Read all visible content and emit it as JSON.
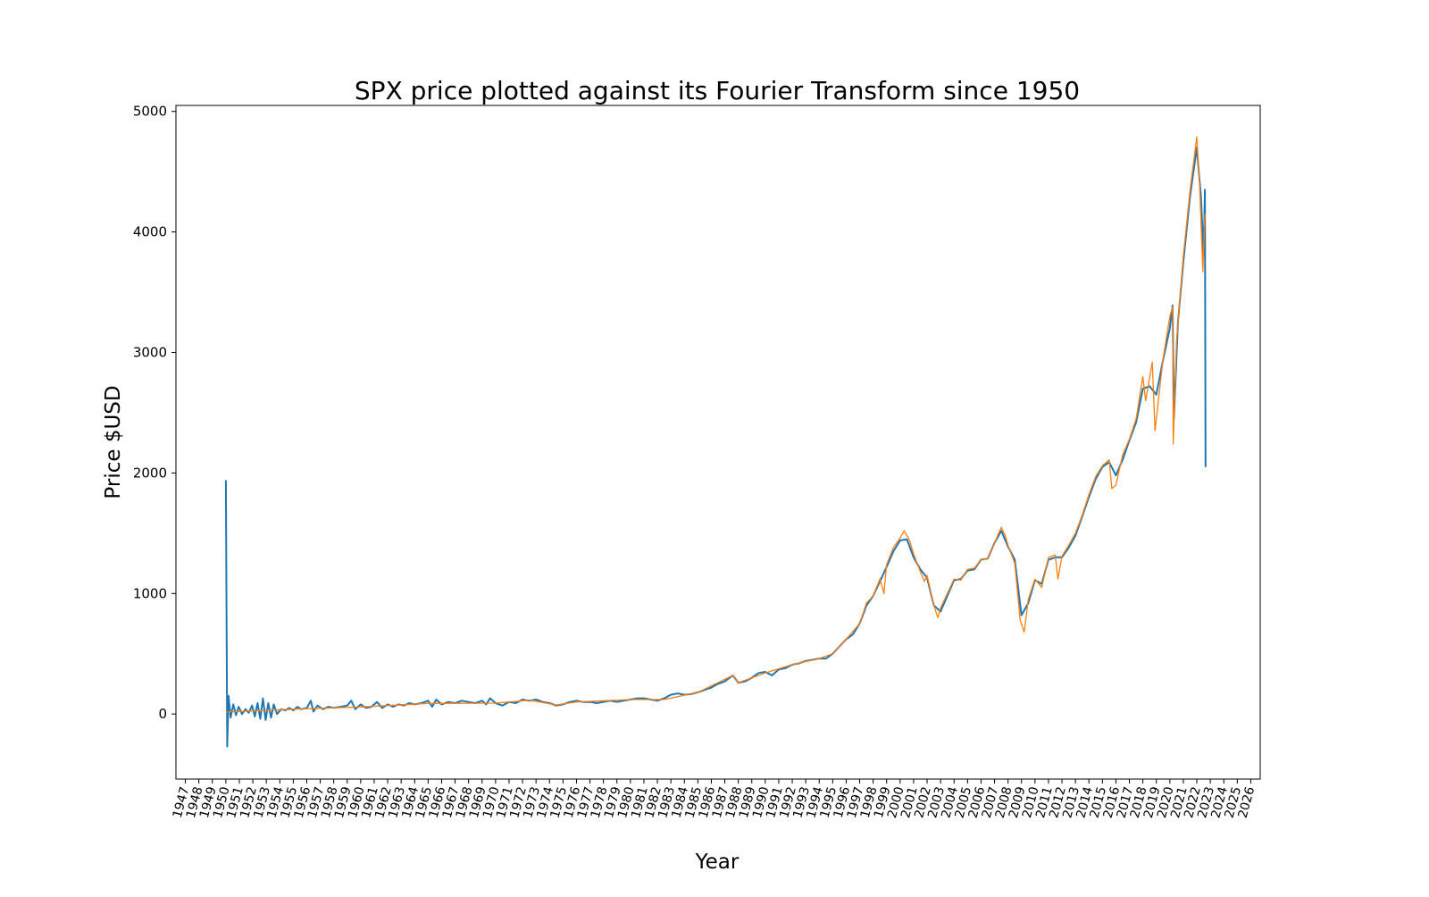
{
  "chart_data": {
    "type": "line",
    "title": "SPX price plotted against its Fourier Transform since 1950",
    "xlabel": "Year",
    "ylabel": "Price $USD",
    "xlim": [
      1946.3,
      2026.7
    ],
    "ylim": [
      -540,
      5050
    ],
    "yticks": [
      0,
      1000,
      2000,
      3000,
      4000,
      5000
    ],
    "xticks": [
      1947,
      1948,
      1949,
      1950,
      1951,
      1952,
      1953,
      1954,
      1955,
      1956,
      1957,
      1958,
      1959,
      1960,
      1961,
      1962,
      1963,
      1964,
      1965,
      1966,
      1967,
      1968,
      1969,
      1970,
      1971,
      1972,
      1973,
      1974,
      1975,
      1976,
      1977,
      1978,
      1979,
      1980,
      1981,
      1982,
      1983,
      1984,
      1985,
      1986,
      1987,
      1988,
      1989,
      1990,
      1991,
      1992,
      1993,
      1994,
      1995,
      1996,
      1997,
      1998,
      1999,
      2000,
      2001,
      2002,
      2003,
      2004,
      2005,
      2006,
      2007,
      2008,
      2009,
      2010,
      2011,
      2012,
      2013,
      2014,
      2015,
      2016,
      2017,
      2018,
      2019,
      2020,
      2021,
      2022,
      2023,
      2024,
      2025,
      2026
    ],
    "grid": false,
    "legend": false,
    "colors": {
      "fourier": "#1f77b4",
      "price": "#ff7f0e"
    },
    "series": [
      {
        "key": "fourier",
        "color": "#1f77b4",
        "points": [
          [
            1950.0,
            1940
          ],
          [
            1950.1,
            -270
          ],
          [
            1950.2,
            150
          ],
          [
            1950.35,
            -30
          ],
          [
            1950.55,
            80
          ],
          [
            1950.75,
            -10
          ],
          [
            1950.95,
            60
          ],
          [
            1951.2,
            0
          ],
          [
            1951.45,
            40
          ],
          [
            1951.7,
            10
          ],
          [
            1951.95,
            70
          ],
          [
            1952.15,
            -20
          ],
          [
            1952.35,
            90
          ],
          [
            1952.55,
            -40
          ],
          [
            1952.75,
            130
          ],
          [
            1952.95,
            -50
          ],
          [
            1953.15,
            90
          ],
          [
            1953.35,
            -30
          ],
          [
            1953.55,
            80
          ],
          [
            1953.8,
            0
          ],
          [
            1954.1,
            40
          ],
          [
            1954.4,
            30
          ],
          [
            1954.7,
            50
          ],
          [
            1955.0,
            30
          ],
          [
            1955.3,
            60
          ],
          [
            1955.6,
            40
          ],
          [
            1956.0,
            50
          ],
          [
            1956.3,
            110
          ],
          [
            1956.5,
            20
          ],
          [
            1956.8,
            70
          ],
          [
            1957.2,
            40
          ],
          [
            1957.6,
            60
          ],
          [
            1958.0,
            50
          ],
          [
            1958.5,
            60
          ],
          [
            1959.0,
            70
          ],
          [
            1959.3,
            110
          ],
          [
            1959.6,
            40
          ],
          [
            1960.0,
            80
          ],
          [
            1960.4,
            50
          ],
          [
            1960.8,
            60
          ],
          [
            1961.2,
            100
          ],
          [
            1961.6,
            50
          ],
          [
            1962.0,
            80
          ],
          [
            1962.4,
            60
          ],
          [
            1962.8,
            80
          ],
          [
            1963.2,
            70
          ],
          [
            1963.6,
            90
          ],
          [
            1964.0,
            80
          ],
          [
            1964.5,
            90
          ],
          [
            1965.0,
            110
          ],
          [
            1965.3,
            60
          ],
          [
            1965.6,
            120
          ],
          [
            1966.0,
            80
          ],
          [
            1966.5,
            100
          ],
          [
            1967.0,
            90
          ],
          [
            1967.5,
            110
          ],
          [
            1968.0,
            100
          ],
          [
            1968.5,
            90
          ],
          [
            1969.0,
            110
          ],
          [
            1969.3,
            80
          ],
          [
            1969.6,
            130
          ],
          [
            1970.0,
            90
          ],
          [
            1970.5,
            70
          ],
          [
            1971.0,
            100
          ],
          [
            1971.5,
            90
          ],
          [
            1972.0,
            120
          ],
          [
            1972.5,
            110
          ],
          [
            1973.0,
            120
          ],
          [
            1973.5,
            100
          ],
          [
            1974.0,
            90
          ],
          [
            1974.5,
            70
          ],
          [
            1975.0,
            80
          ],
          [
            1975.5,
            100
          ],
          [
            1976.0,
            110
          ],
          [
            1976.5,
            100
          ],
          [
            1977.0,
            100
          ],
          [
            1977.5,
            90
          ],
          [
            1978.0,
            100
          ],
          [
            1978.5,
            110
          ],
          [
            1979.0,
            100
          ],
          [
            1979.5,
            110
          ],
          [
            1980.0,
            120
          ],
          [
            1980.5,
            130
          ],
          [
            1981.0,
            130
          ],
          [
            1981.5,
            120
          ],
          [
            1982.0,
            110
          ],
          [
            1982.5,
            130
          ],
          [
            1983.0,
            160
          ],
          [
            1983.5,
            170
          ],
          [
            1984.0,
            160
          ],
          [
            1984.5,
            165
          ],
          [
            1985.0,
            180
          ],
          [
            1985.5,
            200
          ],
          [
            1986.0,
            220
          ],
          [
            1986.5,
            250
          ],
          [
            1987.0,
            270
          ],
          [
            1987.6,
            320
          ],
          [
            1988.0,
            260
          ],
          [
            1988.5,
            270
          ],
          [
            1989.0,
            300
          ],
          [
            1989.5,
            340
          ],
          [
            1990.0,
            350
          ],
          [
            1990.5,
            320
          ],
          [
            1991.0,
            370
          ],
          [
            1991.5,
            380
          ],
          [
            1992.0,
            410
          ],
          [
            1992.5,
            420
          ],
          [
            1993.0,
            440
          ],
          [
            1993.5,
            450
          ],
          [
            1994.0,
            460
          ],
          [
            1994.5,
            460
          ],
          [
            1995.0,
            500
          ],
          [
            1995.5,
            560
          ],
          [
            1996.0,
            620
          ],
          [
            1996.5,
            660
          ],
          [
            1997.0,
            750
          ],
          [
            1997.5,
            900
          ],
          [
            1998.0,
            980
          ],
          [
            1998.5,
            1100
          ],
          [
            1999.0,
            1220
          ],
          [
            1999.5,
            1350
          ],
          [
            2000.0,
            1440
          ],
          [
            2000.5,
            1450
          ],
          [
            2001.0,
            1300
          ],
          [
            2001.5,
            1200
          ],
          [
            2002.0,
            1130
          ],
          [
            2002.5,
            900
          ],
          [
            2003.0,
            850
          ],
          [
            2003.5,
            980
          ],
          [
            2004.0,
            1110
          ],
          [
            2004.5,
            1120
          ],
          [
            2005.0,
            1190
          ],
          [
            2005.5,
            1200
          ],
          [
            2006.0,
            1280
          ],
          [
            2006.5,
            1290
          ],
          [
            2007.0,
            1420
          ],
          [
            2007.5,
            1520
          ],
          [
            2008.0,
            1390
          ],
          [
            2008.5,
            1280
          ],
          [
            2009.0,
            820
          ],
          [
            2009.5,
            920
          ],
          [
            2010.0,
            1110
          ],
          [
            2010.5,
            1080
          ],
          [
            2011.0,
            1280
          ],
          [
            2011.5,
            1300
          ],
          [
            2012.0,
            1300
          ],
          [
            2012.5,
            1380
          ],
          [
            2013.0,
            1480
          ],
          [
            2013.5,
            1640
          ],
          [
            2014.0,
            1800
          ],
          [
            2014.5,
            1950
          ],
          [
            2015.0,
            2050
          ],
          [
            2015.5,
            2090
          ],
          [
            2016.0,
            1980
          ],
          [
            2016.5,
            2110
          ],
          [
            2017.0,
            2270
          ],
          [
            2017.5,
            2420
          ],
          [
            2018.0,
            2700
          ],
          [
            2018.5,
            2720
          ],
          [
            2019.0,
            2650
          ],
          [
            2019.5,
            2940
          ],
          [
            2020.0,
            3200
          ],
          [
            2020.2,
            3390
          ],
          [
            2020.3,
            2450
          ],
          [
            2020.6,
            3250
          ],
          [
            2021.0,
            3750
          ],
          [
            2021.5,
            4300
          ],
          [
            2022.0,
            4700
          ],
          [
            2022.3,
            4300
          ],
          [
            2022.5,
            3800
          ],
          [
            2022.6,
            4350
          ],
          [
            2022.65,
            2050
          ]
        ]
      },
      {
        "key": "price",
        "color": "#ff7f0e",
        "points": [
          [
            1950.0,
            17
          ],
          [
            1955.0,
            40
          ],
          [
            1960.0,
            58
          ],
          [
            1965.0,
            88
          ],
          [
            1970.0,
            90
          ],
          [
            1972.5,
            115
          ],
          [
            1974.5,
            75
          ],
          [
            1976.0,
            100
          ],
          [
            1980.0,
            120
          ],
          [
            1982.5,
            120
          ],
          [
            1985.0,
            180
          ],
          [
            1987.6,
            320
          ],
          [
            1988.0,
            260
          ],
          [
            1990.0,
            340
          ],
          [
            1992.0,
            410
          ],
          [
            1994.0,
            460
          ],
          [
            1995.0,
            500
          ],
          [
            1996.0,
            620
          ],
          [
            1997.0,
            750
          ],
          [
            1997.5,
            920
          ],
          [
            1998.0,
            980
          ],
          [
            1998.5,
            1120
          ],
          [
            1998.8,
            1000
          ],
          [
            1999.0,
            1240
          ],
          [
            1999.5,
            1380
          ],
          [
            2000.0,
            1460
          ],
          [
            2000.3,
            1520
          ],
          [
            2000.7,
            1440
          ],
          [
            2001.0,
            1330
          ],
          [
            2001.5,
            1180
          ],
          [
            2001.8,
            1100
          ],
          [
            2002.0,
            1150
          ],
          [
            2002.5,
            900
          ],
          [
            2002.8,
            800
          ],
          [
            2003.0,
            880
          ],
          [
            2003.5,
            1000
          ],
          [
            2004.0,
            1120
          ],
          [
            2004.5,
            1110
          ],
          [
            2005.0,
            1200
          ],
          [
            2005.5,
            1210
          ],
          [
            2006.0,
            1280
          ],
          [
            2006.5,
            1290
          ],
          [
            2007.0,
            1420
          ],
          [
            2007.5,
            1550
          ],
          [
            2007.8,
            1480
          ],
          [
            2008.0,
            1400
          ],
          [
            2008.5,
            1250
          ],
          [
            2008.9,
            780
          ],
          [
            2009.2,
            680
          ],
          [
            2009.5,
            950
          ],
          [
            2010.0,
            1120
          ],
          [
            2010.5,
            1050
          ],
          [
            2011.0,
            1300
          ],
          [
            2011.5,
            1320
          ],
          [
            2011.7,
            1120
          ],
          [
            2012.0,
            1310
          ],
          [
            2012.5,
            1400
          ],
          [
            2013.0,
            1500
          ],
          [
            2013.5,
            1650
          ],
          [
            2014.0,
            1820
          ],
          [
            2014.5,
            1970
          ],
          [
            2015.0,
            2060
          ],
          [
            2015.5,
            2110
          ],
          [
            2015.7,
            1870
          ],
          [
            2016.0,
            1900
          ],
          [
            2016.5,
            2150
          ],
          [
            2017.0,
            2280
          ],
          [
            2017.5,
            2450
          ],
          [
            2018.0,
            2800
          ],
          [
            2018.2,
            2600
          ],
          [
            2018.7,
            2920
          ],
          [
            2018.9,
            2350
          ],
          [
            2019.5,
            2950
          ],
          [
            2020.0,
            3300
          ],
          [
            2020.2,
            3380
          ],
          [
            2020.25,
            2240
          ],
          [
            2020.5,
            3100
          ],
          [
            2021.0,
            3800
          ],
          [
            2021.5,
            4350
          ],
          [
            2022.0,
            4790
          ],
          [
            2022.2,
            4400
          ],
          [
            2022.45,
            3670
          ],
          [
            2022.6,
            4150
          ]
        ]
      }
    ]
  }
}
